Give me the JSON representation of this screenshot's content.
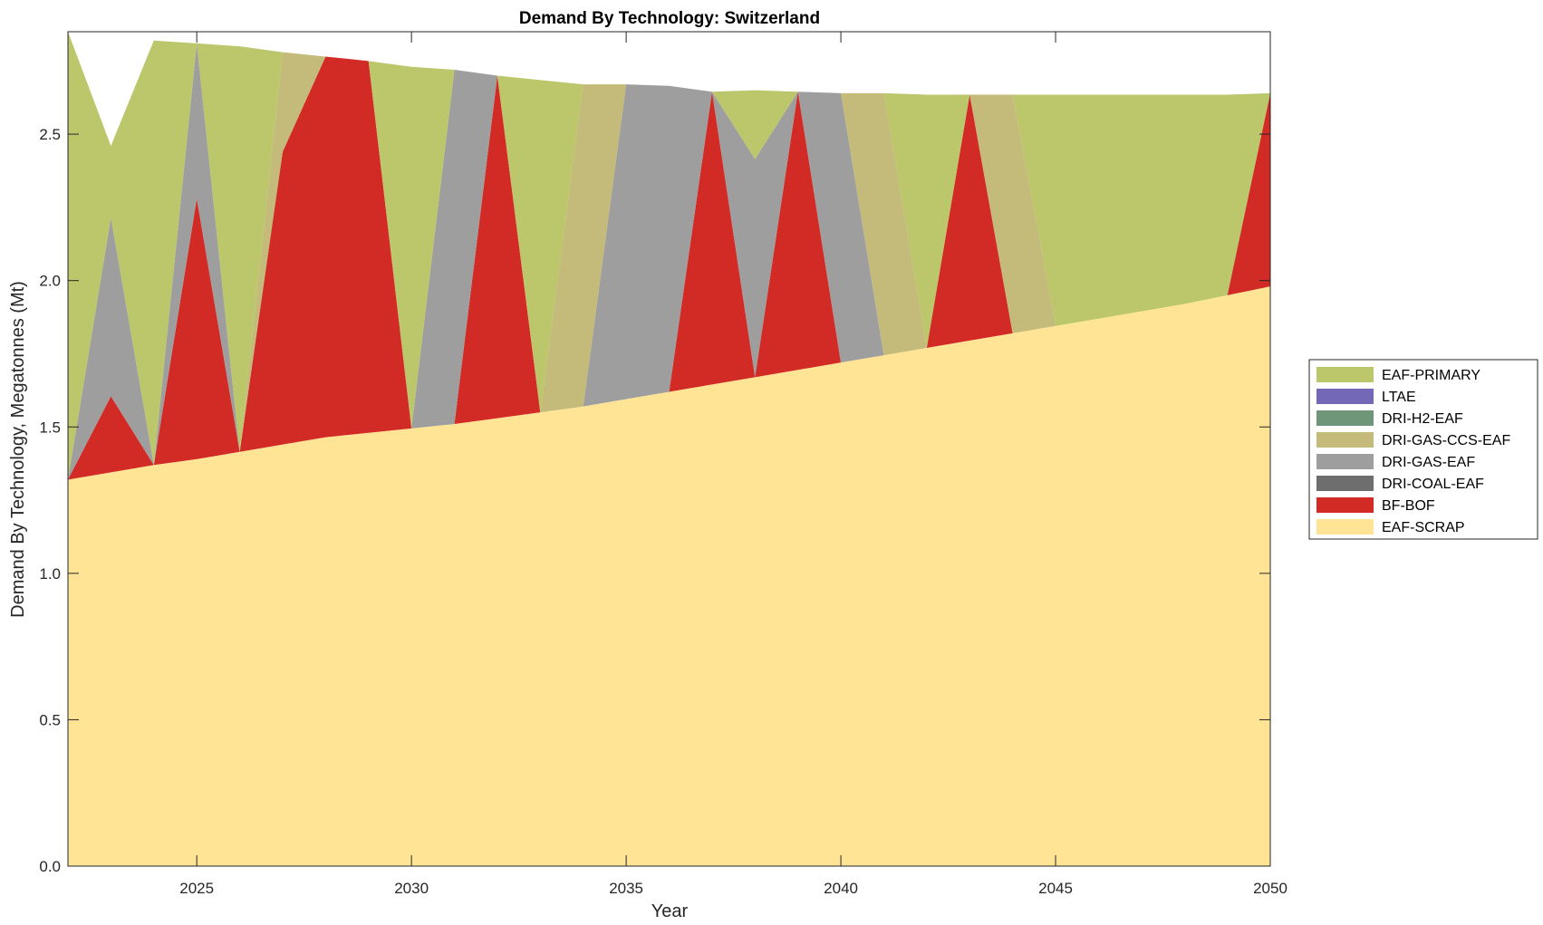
{
  "chart_data": {
    "type": "area",
    "title": "Demand By Technology: Switzerland",
    "xlabel": "Year",
    "ylabel": "Demand By Technology, Megatonnes (Mt)",
    "xlim": [
      2022,
      2050
    ],
    "ylim": [
      0,
      2.85
    ],
    "xticks": [
      "2025",
      "2030",
      "2035",
      "2040",
      "2045",
      "2050"
    ],
    "yticks": [
      "0.0",
      "0.5",
      "1.0",
      "1.5",
      "2.0",
      "2.5"
    ],
    "legend_position": "right",
    "x": [
      2022,
      2023,
      2024,
      2025,
      2026,
      2027,
      2028,
      2029,
      2030,
      2031,
      2032,
      2033,
      2034,
      2035,
      2036,
      2037,
      2038,
      2039,
      2040,
      2041,
      2042,
      2043,
      2044,
      2045,
      2046,
      2047,
      2048,
      2049,
      2050
    ],
    "series": [
      {
        "name": "EAF-SCRAP",
        "color": "#FFE496",
        "values": [
          1.32,
          1.345,
          1.37,
          1.39,
          1.415,
          1.44,
          1.465,
          1.48,
          1.495,
          1.51,
          1.53,
          1.55,
          1.57,
          1.595,
          1.62,
          1.645,
          1.67,
          1.695,
          1.72,
          1.745,
          1.77,
          1.795,
          1.82,
          1.845,
          1.87,
          1.895,
          1.92,
          1.95,
          1.98
        ]
      },
      {
        "name": "BF-BOF",
        "color": "#D22B26",
        "values": [
          0,
          0.26,
          0,
          0.89,
          0,
          1.0,
          1.3,
          1.27,
          0,
          0,
          1.17,
          0,
          0,
          0,
          0,
          1.0,
          0,
          0.95,
          0,
          0,
          0,
          0.84,
          0,
          0,
          0,
          0,
          0,
          0,
          0.66
        ]
      },
      {
        "name": "DRI-COAL-EAF",
        "color": "#6E6E6E",
        "values": [
          0,
          0,
          0,
          0,
          0,
          0,
          0,
          0,
          0,
          0,
          0,
          0,
          0,
          0,
          0,
          0,
          0,
          0,
          0,
          0,
          0,
          0,
          0,
          0,
          0,
          0,
          0,
          0,
          0
        ]
      },
      {
        "name": "DRI-GAS-EAF",
        "color": "#9E9E9E",
        "values": [
          0,
          0.61,
          0,
          0.53,
          0,
          0,
          0,
          0,
          0,
          1.21,
          0,
          0,
          0,
          1.075,
          1.045,
          0,
          0.745,
          0,
          0.92,
          0,
          0,
          0,
          0,
          0,
          0,
          0,
          0,
          0,
          0
        ]
      },
      {
        "name": "DRI-GAS-CCS-EAF",
        "color": "#C4BA7A",
        "values": [
          0,
          0,
          0,
          0,
          0,
          0.34,
          0,
          0,
          0,
          0,
          0,
          0,
          1.1,
          0,
          0,
          0,
          0,
          0,
          0,
          0.895,
          0,
          0,
          0.815,
          0,
          0,
          0,
          0,
          0,
          0
        ]
      },
      {
        "name": "DRI-H2-EAF",
        "color": "#6F9679",
        "values": [
          0,
          0,
          0,
          0,
          0,
          0,
          0,
          0,
          0,
          0,
          0,
          0,
          0,
          0,
          0,
          0,
          0,
          0,
          0,
          0,
          0,
          0,
          0,
          0,
          0,
          0,
          0,
          0,
          0
        ]
      },
      {
        "name": "LTAE",
        "color": "#7367B8",
        "values": [
          0,
          0,
          0,
          0,
          0,
          0,
          0,
          0,
          0,
          0,
          0,
          0,
          0,
          0,
          0,
          0,
          0,
          0,
          0,
          0,
          0,
          0,
          0,
          0,
          0,
          0,
          0,
          0,
          0
        ]
      },
      {
        "name": "EAF-PRIMARY",
        "color": "#BCC66B",
        "values": [
          1.53,
          0.245,
          1.45,
          0,
          1.385,
          0,
          0,
          0,
          1.235,
          0,
          0,
          1.135,
          0,
          0,
          0,
          0,
          0.235,
          0,
          0,
          0,
          0.865,
          0,
          0,
          0.79,
          0.765,
          0.74,
          0.715,
          0.685,
          0
        ]
      }
    ],
    "legend_order": [
      "EAF-PRIMARY",
      "LTAE",
      "DRI-H2-EAF",
      "DRI-GAS-CCS-EAF",
      "DRI-GAS-EAF",
      "DRI-COAL-EAF",
      "BF-BOF",
      "EAF-SCRAP"
    ]
  }
}
